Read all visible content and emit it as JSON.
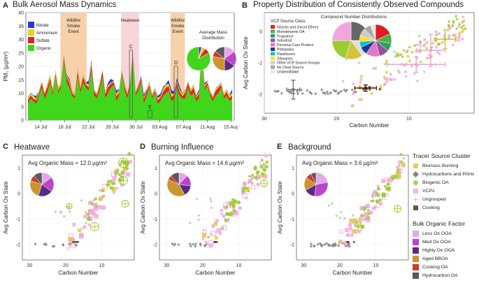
{
  "panels": {
    "A": {
      "letter": "A",
      "title": "Bulk Aerosol Mass Dynamics"
    },
    "B": {
      "letter": "B",
      "title": "Property Distribution of Consistently Observed Compounds"
    },
    "C": {
      "letter": "C",
      "title": "Heatwave"
    },
    "D": {
      "letter": "D",
      "title": "Burning Influence"
    },
    "E": {
      "letter": "E",
      "title": "Background"
    }
  },
  "chart_data": [
    {
      "id": "A",
      "type": "area",
      "title": "Bulk Aerosol Mass Dynamics",
      "ylabel": "PM₁ (µg/m³)",
      "ylim": [
        0,
        40
      ],
      "yticks": [
        0,
        5,
        10,
        15,
        20,
        25,
        30,
        35,
        40
      ],
      "xticklabels": [
        "14 Jul",
        "18 Jul",
        "22 Jul",
        "26 Jul",
        "30 Jul",
        "03 Aug",
        "07 Aug",
        "11 Aug",
        "15 Aug"
      ],
      "series_legend": [
        {
          "name": "Nitrate",
          "color": "#2b36e0"
        },
        {
          "name": "Ammonium",
          "color": "#e8d21a"
        },
        {
          "name": "Sulfate",
          "color": "#e0261c"
        },
        {
          "name": "Organic",
          "color": "#3fd61b"
        }
      ],
      "organic_profile": [
        6,
        8,
        7,
        6,
        9,
        12,
        8,
        10,
        14,
        9,
        16,
        10,
        12,
        22,
        14,
        12,
        9,
        8,
        16,
        10,
        14,
        12,
        11,
        18,
        9,
        8,
        11,
        16,
        8,
        10,
        12,
        13,
        7,
        9,
        17,
        11,
        8,
        12,
        23,
        9,
        11,
        14,
        6,
        9,
        12,
        8,
        10,
        6,
        7,
        9,
        10,
        11,
        7,
        8,
        12,
        9,
        8,
        8,
        12,
        9,
        10,
        7,
        8,
        24,
        11,
        13,
        9,
        7,
        9,
        10,
        12,
        8,
        9,
        7,
        8
      ],
      "shaded_events": [
        {
          "label_lines": [
            "Wildfire",
            "Smoke",
            "Event"
          ],
          "start": "17.3 Jul",
          "end": "21.7 Jul",
          "color": "#f4c99a"
        },
        {
          "label_lines": [
            "Heatwave"
          ],
          "start": "27.5 Jul",
          "end": "30.5 Jul",
          "color": "#f6cdd3"
        },
        {
          "label_lines": [
            "Wildfire",
            "Smoke",
            "Event"
          ],
          "start": "4.8 Aug",
          "end": "7.2 Aug",
          "color": "#f4c99a"
        }
      ],
      "boxes": [
        {
          "label": "C"
        },
        {
          "label": "E"
        },
        {
          "label": "D"
        }
      ],
      "inset_title_lines": [
        "Average Mass",
        "Distribution"
      ]
    },
    {
      "id": "B",
      "type": "scatter",
      "title": "Property Distribution of Consistently Observed Compounds",
      "xlabel": "Carbon Number",
      "ylabel": "Avg Carbon Ox State",
      "xlim": [
        30,
        1
      ],
      "ylim": [
        -2.6,
        0.6
      ],
      "xticks": [
        30,
        20,
        10
      ],
      "yticks": [
        0,
        -1,
        -2
      ],
      "inset_title": "Compound Number Distributions",
      "legend_title": "VCP Source Class",
      "vcp_classes": [
        {
          "name": "Glycols and Glycol Ethers",
          "color": "#e41a1c"
        },
        {
          "name": "Monoterpene OA",
          "color": "#4daf4a"
        },
        {
          "name": "Fragrance",
          "color": "#2ca25f"
        },
        {
          "name": "Industrial",
          "color": "#984ea3"
        },
        {
          "name": "Personal Care Product",
          "color": "#e377c2"
        },
        {
          "name": "Phthalates",
          "color": "#1f3a93"
        },
        {
          "name": "Plasticizers",
          "color": "#17becf"
        },
        {
          "name": "Siloxanes",
          "color": "#ffe119"
        },
        {
          "name": "Other VCP Source Groups",
          "color": "#cccccc"
        },
        {
          "name": "No Clear Source",
          "color": "#a6a6a6"
        },
        {
          "name": "Unidentifiable",
          "color": "#e6e6e6"
        }
      ],
      "pie_left": [
        {
          "name": "Hydrocarbons and PAHs",
          "value": 25,
          "color": "#666666"
        },
        {
          "name": "Ungrouped",
          "value": 15,
          "color": "#e0e0e0"
        },
        {
          "name": "Biomass Burning",
          "value": 15,
          "color": "#d4c43c"
        },
        {
          "name": "Biogenic OA",
          "value": 20,
          "color": "#9acd32"
        },
        {
          "name": "VCPs",
          "value": 25,
          "color": "#f2a6dd"
        }
      ],
      "pie_right": [
        {
          "name": "Glycols and Glycol Ethers",
          "value": 18,
          "color": "#e41a1c"
        },
        {
          "name": "Monoterpene OA",
          "value": 10,
          "color": "#4daf4a"
        },
        {
          "name": "Fragrance",
          "value": 8,
          "color": "#2ca25f"
        },
        {
          "name": "Industrial",
          "value": 10,
          "color": "#984ea3"
        },
        {
          "name": "Personal Care Product",
          "value": 14,
          "color": "#e377c2"
        },
        {
          "name": "Phthalates",
          "value": 8,
          "color": "#1f3a93"
        },
        {
          "name": "Plasticizers",
          "value": 6,
          "color": "#17becf"
        },
        {
          "name": "Siloxanes",
          "value": 6,
          "color": "#ffe119"
        },
        {
          "name": "Other VCP Source Groups",
          "value": 8,
          "color": "#cccccc"
        },
        {
          "name": "No Clear Source",
          "value": 7,
          "color": "#a6a6a6"
        },
        {
          "name": "Unidentifiable",
          "value": 5,
          "color": "#e6e6e6"
        }
      ],
      "errorbars": [
        {
          "x": 26,
          "y": -1.85,
          "xerr": 0.9,
          "yerr": 0.3,
          "color": "#777777"
        },
        {
          "x": 16,
          "y": -1.8,
          "xerr": 1.5,
          "yerr": 0.1,
          "color": "#4a2a0e"
        },
        {
          "x": 9,
          "y": -1.05,
          "xerr": 4,
          "yerr": 0.25,
          "color": "#f0a0dc"
        },
        {
          "x": 7,
          "y": -0.6,
          "xerr": 2,
          "yerr": 0.5,
          "color": "#f0a0dc"
        },
        {
          "x": 5,
          "y": -0.25,
          "xerr": 1.5,
          "yerr": 0.3,
          "color": "#d4c43c"
        }
      ]
    },
    {
      "id": "C",
      "type": "scatter",
      "title": "Heatwave",
      "annotation": "Avg Organic Mass = 12.0 µg/m³",
      "xlabel": "Carbon Number",
      "ylabel": "Avg Carbon Ox State",
      "xlim": [
        32,
        1
      ],
      "ylim": [
        -2.6,
        1.5
      ],
      "xticks": [
        30,
        20,
        10
      ],
      "yticks": [
        1,
        0,
        -1,
        -2
      ],
      "pie": [
        {
          "name": "Less Ox OOA",
          "value": 15,
          "color": "#e6a6e6"
        },
        {
          "name": "Med Ox OOA",
          "value": 20,
          "color": "#bb44cc"
        },
        {
          "name": "Highly Ox OOA",
          "value": 20,
          "color": "#5b2a86"
        },
        {
          "name": "Aged BBOA",
          "value": 25,
          "color": "#c8962a"
        },
        {
          "name": "Cooking OA",
          "value": 8,
          "color": "#d0392b"
        },
        {
          "name": "Hydrocarbon OA",
          "value": 12,
          "color": "#595959"
        }
      ]
    },
    {
      "id": "D",
      "type": "scatter",
      "title": "Burning Influence",
      "annotation": "Avg Organic Mass = 14.6 µg/m³",
      "xlabel": "Carbon Number",
      "ylabel": "Avg Carbon Ox State",
      "xlim": [
        32,
        1
      ],
      "ylim": [
        -2.6,
        1.5
      ],
      "xticks": [
        30,
        20,
        10
      ],
      "yticks": [
        1,
        0,
        -1,
        -2
      ],
      "pie": [
        {
          "name": "Less Ox OOA",
          "value": 12,
          "color": "#e6a6e6"
        },
        {
          "name": "Med Ox OOA",
          "value": 15,
          "color": "#bb44cc"
        },
        {
          "name": "Highly Ox OOA",
          "value": 15,
          "color": "#5b2a86"
        },
        {
          "name": "Aged BBOA",
          "value": 40,
          "color": "#c8962a"
        },
        {
          "name": "Cooking OA",
          "value": 6,
          "color": "#d0392b"
        },
        {
          "name": "Hydrocarbon OA",
          "value": 12,
          "color": "#595959"
        }
      ]
    },
    {
      "id": "E",
      "type": "scatter",
      "title": "Background",
      "annotation": "Avg Organic Mass = 3.6 µg/m³",
      "xlabel": "Carbon Number",
      "ylabel": "Avg Carbon Ox State",
      "xlim": [
        32,
        1
      ],
      "ylim": [
        -2.6,
        1.5
      ],
      "xticks": [
        30,
        20,
        10
      ],
      "yticks": [
        1,
        0,
        -1,
        -2
      ],
      "pie": [
        {
          "name": "Less Ox OOA",
          "value": 22,
          "color": "#e6a6e6"
        },
        {
          "name": "Med Ox OOA",
          "value": 30,
          "color": "#bb44cc"
        },
        {
          "name": "Highly Ox OOA",
          "value": 15,
          "color": "#5b2a86"
        },
        {
          "name": "Aged BBOA",
          "value": 18,
          "color": "#c8962a"
        },
        {
          "name": "Cooking OA",
          "value": 8,
          "color": "#d0392b"
        },
        {
          "name": "Hydrocarbon OA",
          "value": 7,
          "color": "#595959"
        }
      ]
    }
  ],
  "legend_tracer": {
    "title": "Tracer Source Cluster",
    "items": [
      {
        "name": "Biomass Burning",
        "color": "#e2c83a",
        "shape": "square"
      },
      {
        "name": "Hydrocarbons and PAHs",
        "color": "#777777",
        "shape": "diamond"
      },
      {
        "name": "Biogenic OA",
        "color": "#9acd32",
        "shape": "circle"
      },
      {
        "name": "VCPs",
        "color": "#f2a6dd",
        "shape": "square"
      },
      {
        "name": "Ungrouped",
        "color": "#c8c8c8",
        "shape": "plus"
      },
      {
        "name": "Cooking",
        "color": "#5c3317",
        "shape": "square"
      }
    ]
  },
  "legend_factor": {
    "title": "Bulk Organic Factor",
    "items": [
      {
        "name": "Less Ox OOA",
        "color": "#e6a6e6"
      },
      {
        "name": "Med Ox OOA",
        "color": "#bb44cc"
      },
      {
        "name": "Highly Ox OOA",
        "color": "#5b2a86"
      },
      {
        "name": "Aged BBOA",
        "color": "#c8962a"
      },
      {
        "name": "Cooking OA",
        "color": "#d0392b"
      },
      {
        "name": "Hydrocarbon OA",
        "color": "#595959"
      }
    ]
  }
}
